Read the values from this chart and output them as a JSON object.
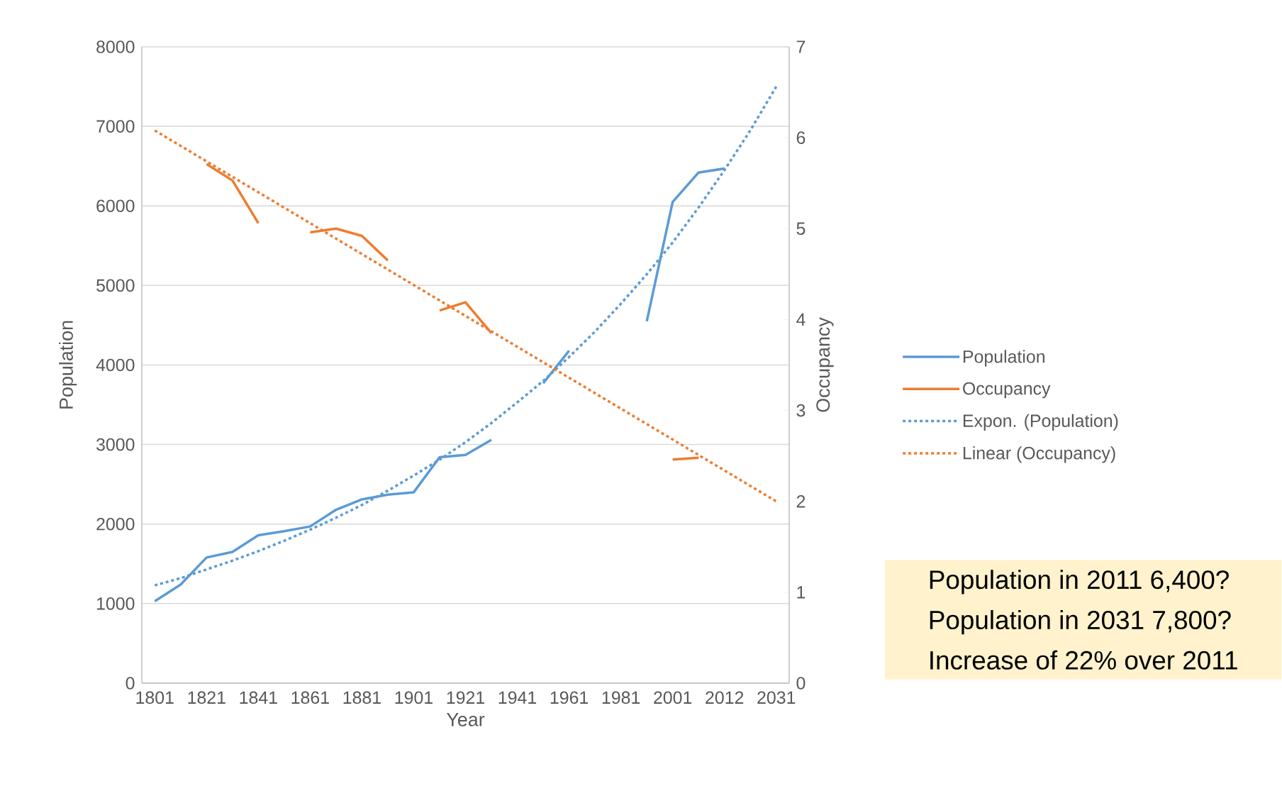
{
  "chart_data": {
    "type": "line",
    "xlabel": "Year",
    "ylabel": "Population",
    "y2label": "Occupancy",
    "categories": [
      "1801",
      null,
      "1821",
      null,
      "1841",
      null,
      "1861",
      null,
      "1881",
      null,
      "1901",
      null,
      "1921",
      null,
      "1941",
      null,
      "1961",
      null,
      "1981",
      null,
      "2001",
      null,
      "2012",
      null,
      "2031"
    ],
    "series": [
      {
        "name": "Population",
        "color": "#5b9bd5",
        "values": [
          1030,
          1240,
          1580,
          1650,
          1860,
          1910,
          1970,
          2180,
          2310,
          2370,
          2400,
          2840,
          2870,
          3060,
          null,
          3770,
          4180,
          null,
          null,
          4550,
          6050,
          6420,
          6470,
          null,
          null
        ]
      },
      {
        "name": "Occupancy",
        "color": "#ed7d31",
        "axis": "y2",
        "values": [
          null,
          null,
          5.71,
          5.53,
          5.06,
          null,
          4.96,
          5.0,
          4.92,
          4.65,
          null,
          4.1,
          4.19,
          3.85,
          null,
          null,
          null,
          null,
          null,
          null,
          2.46,
          2.48,
          null,
          null,
          null
        ]
      },
      {
        "name": "Expon. (Population)",
        "color": "#5b9bd5",
        "line_style": "dotted",
        "values": [
          1230,
          1320,
          1430,
          1540,
          1660,
          1790,
          1930,
          2080,
          2240,
          2420,
          2610,
          2810,
          3030,
          3270,
          3530,
          3800,
          4100,
          4420,
          4770,
          5140,
          5540,
          5980,
          6450,
          6950,
          7500
        ]
      },
      {
        "name": "Linear (Occupancy)",
        "color": "#ed7d31",
        "axis": "y2",
        "line_style": "dotted",
        "values": [
          6.08,
          5.91,
          5.74,
          5.57,
          5.4,
          5.23,
          5.06,
          4.89,
          4.72,
          4.55,
          4.38,
          4.21,
          4.04,
          3.87,
          3.7,
          3.53,
          3.36,
          3.19,
          3.02,
          2.85,
          2.68,
          2.51,
          2.34,
          2.17,
          2.0
        ]
      }
    ],
    "ylim": [
      0,
      8000
    ],
    "yticks": [
      0,
      1000,
      2000,
      3000,
      4000,
      5000,
      6000,
      7000,
      8000
    ],
    "y2lim": [
      0,
      7
    ],
    "y2ticks": [
      0,
      1,
      2,
      3,
      4,
      5,
      6,
      7
    ],
    "grid": "y",
    "legend": "right",
    "annotations": [
      "Population in 2011 6,400?",
      "Population in 2031 7,800?",
      "Increase of 22% over 2011"
    ]
  }
}
